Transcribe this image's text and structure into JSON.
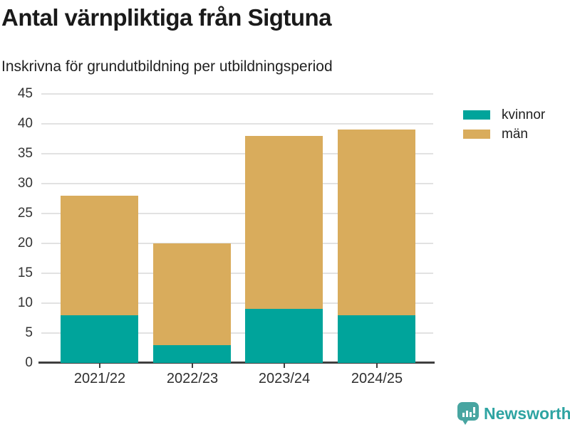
{
  "header": {
    "title": "Antal värnpliktiga från Sigtuna",
    "subtitle": "Inskrivna för grundutbildning per utbildningsperiod"
  },
  "chart_data": {
    "type": "bar",
    "stacked": true,
    "title": "Antal värnpliktiga från Sigtuna",
    "subtitle": "Inskrivna för grundutbildning per utbildningsperiod",
    "categories": [
      "2021/22",
      "2022/23",
      "2023/24",
      "2024/25"
    ],
    "series": [
      {
        "name": "kvinnor",
        "color": "#00A49B",
        "values": [
          8,
          3,
          9,
          8
        ]
      },
      {
        "name": "män",
        "color": "#D9AC5C",
        "values": [
          20,
          17,
          29,
          31
        ]
      }
    ],
    "totals": [
      28,
      20,
      38,
      39
    ],
    "xlabel": "",
    "ylabel": "",
    "ylim": [
      0,
      45
    ],
    "yticks": [
      0,
      5,
      10,
      15,
      20,
      25,
      30,
      35,
      40,
      45
    ],
    "grid": "horizontal",
    "legend_position": "right-top"
  },
  "legend": {
    "items": [
      {
        "label": "kvinnor",
        "color": "#00A49B"
      },
      {
        "label": "män",
        "color": "#D9AC5C"
      }
    ]
  },
  "branding": {
    "logo_text": "Newsworthy",
    "logo_icon": "bar-chart-speech-bubble-icon",
    "color": "#2EA4A2"
  },
  "colors": {
    "gridline": "#E2E2E2",
    "axis": "#3F3F3F",
    "title_text": "#1A1A1A",
    "tick_text": "#333333"
  }
}
